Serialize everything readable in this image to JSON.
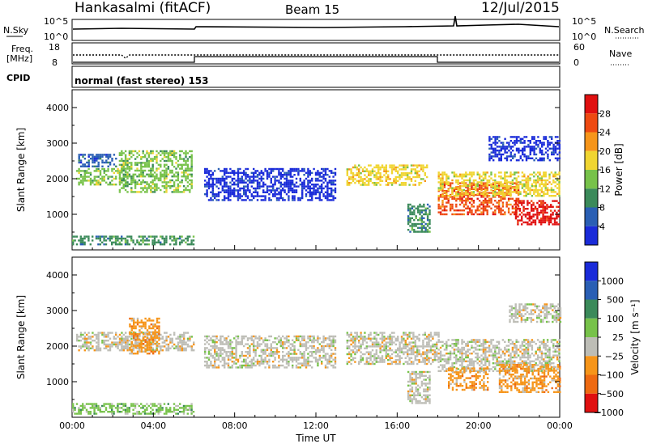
{
  "header": {
    "station": "Hankasalmi (fitACF)",
    "beam": "Beam 15",
    "date": "12/Jul/2015"
  },
  "panels": {
    "nsky": {
      "label": "N.Sky",
      "top_tick": "10^5",
      "bottom_tick": "10^0"
    },
    "nsearch": {
      "label": "N.Search",
      "top_tick": "10^5",
      "bottom_tick": "10^0"
    },
    "freq": {
      "label_line1": "Freq.",
      "label_line2": "[MHz]",
      "top_tick": "18",
      "bottom_tick": "8"
    },
    "nave": {
      "label": "Nave",
      "top_tick": "60",
      "bottom_tick": "0"
    },
    "cpid": {
      "label": "CPID",
      "value": "normal (fast stereo) 153"
    }
  },
  "chart_data": [
    {
      "type": "heatmap",
      "name": "power",
      "ylabel": "Slant Range [km]",
      "ylim": [
        0,
        4500
      ],
      "yticks": [
        "1000",
        "2000",
        "3000",
        "4000"
      ],
      "colorbar_label": "Power [dB]",
      "colorbar_ticks": [
        "4",
        "8",
        "12",
        "16",
        "20",
        "24",
        "28"
      ],
      "colors": [
        "#1a2bd9",
        "#2a5fb4",
        "#3b8a5a",
        "#77c24a",
        "#f0d531",
        "#f6951a",
        "#ee4a12",
        "#e01010"
      ],
      "regions": [
        {
          "t0": 0.2,
          "t1": 2.6,
          "r0": 1850,
          "r1": 2300,
          "level": 3
        },
        {
          "t0": 0.3,
          "t1": 2.2,
          "r0": 2350,
          "r1": 2700,
          "level": 1
        },
        {
          "t0": 2.3,
          "t1": 5.9,
          "r0": 1600,
          "r1": 2800,
          "level": 3
        },
        {
          "t0": 0.0,
          "t1": 6.0,
          "r0": 150,
          "r1": 400,
          "level": 2
        },
        {
          "t0": 6.5,
          "t1": 13.0,
          "r0": 1400,
          "r1": 2300,
          "level": 0
        },
        {
          "t0": 13.5,
          "t1": 17.5,
          "r0": 1800,
          "r1": 2400,
          "level": 4
        },
        {
          "t0": 16.5,
          "t1": 17.6,
          "r0": 500,
          "r1": 1300,
          "level": 2
        },
        {
          "t0": 18.0,
          "t1": 22.0,
          "r0": 1000,
          "r1": 1900,
          "level": 6
        },
        {
          "t0": 21.8,
          "t1": 24.0,
          "r0": 700,
          "r1": 1400,
          "level": 7
        },
        {
          "t0": 18.0,
          "t1": 24.0,
          "r0": 1500,
          "r1": 2200,
          "level": 4
        },
        {
          "t0": 20.5,
          "t1": 24.0,
          "r0": 2500,
          "r1": 3200,
          "level": 0
        }
      ]
    },
    {
      "type": "heatmap",
      "name": "velocity",
      "ylabel": "Slant Range [km]",
      "ylim": [
        0,
        4500
      ],
      "yticks": [
        "1000",
        "2000",
        "3000",
        "4000"
      ],
      "xticks": [
        "00:00",
        "04:00",
        "08:00",
        "12:00",
        "16:00",
        "20:00",
        "00:00"
      ],
      "xlabel": "Time UT",
      "colorbar_label": "Velocity [m s⁻¹]",
      "colorbar_ticks": [
        "1000",
        "500",
        "100",
        "25",
        "−25",
        "−100",
        "−500",
        "−1000"
      ],
      "colors": [
        "#1a2bd9",
        "#2a5fb4",
        "#3b8a5a",
        "#77c24a",
        "#bdbdb6",
        "#f6951a",
        "#ee6a12",
        "#e01010"
      ],
      "regions": [
        {
          "t0": 0.2,
          "t1": 6.0,
          "r0": 1900,
          "r1": 2400,
          "level": 4
        },
        {
          "t0": 2.8,
          "t1": 4.3,
          "r0": 1800,
          "r1": 2800,
          "level": 5
        },
        {
          "t0": 0.0,
          "t1": 6.0,
          "r0": 100,
          "r1": 400,
          "level": 3
        },
        {
          "t0": 6.5,
          "t1": 13.0,
          "r0": 1400,
          "r1": 2300,
          "level": 4
        },
        {
          "t0": 13.5,
          "t1": 18.0,
          "r0": 1500,
          "r1": 2400,
          "level": 4
        },
        {
          "t0": 16.5,
          "t1": 17.6,
          "r0": 400,
          "r1": 1300,
          "level": 4
        },
        {
          "t0": 18.0,
          "t1": 24.0,
          "r0": 1300,
          "r1": 2200,
          "level": 4
        },
        {
          "t0": 21.0,
          "t1": 24.0,
          "r0": 700,
          "r1": 1500,
          "level": 5
        },
        {
          "t0": 18.5,
          "t1": 20.5,
          "r0": 800,
          "r1": 1400,
          "level": 5
        },
        {
          "t0": 21.5,
          "t1": 24.0,
          "r0": 2700,
          "r1": 3200,
          "level": 4
        }
      ]
    }
  ]
}
